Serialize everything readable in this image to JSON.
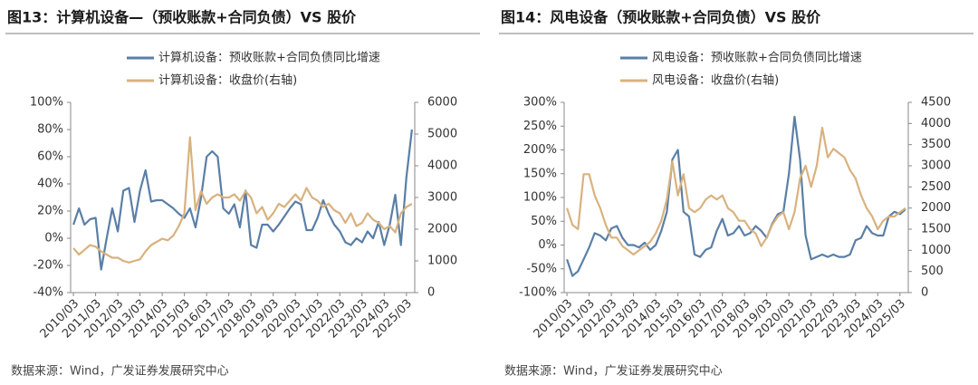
{
  "chart_data": [
    {
      "type": "line",
      "title": "图13：计算机设备—（预收账款+合同负债）VS 股价",
      "source": "数据来源：Wind，广发证券发展研究中心",
      "categories": [
        "2010/03",
        null,
        null,
        null,
        "2011/03",
        null,
        null,
        null,
        "2012/03",
        null,
        null,
        null,
        "2013/03",
        null,
        null,
        null,
        "2014/03",
        null,
        null,
        null,
        "2015/03",
        null,
        null,
        null,
        "2016/03",
        null,
        null,
        null,
        "2017/03",
        null,
        null,
        null,
        "2018/03",
        null,
        null,
        null,
        "2019/03",
        null,
        null,
        null,
        "2020/03",
        null,
        null,
        null,
        "2021/03",
        null,
        null,
        null,
        "2022/03",
        null,
        null,
        null,
        "2023/03",
        null,
        null,
        null,
        "2024/03",
        null,
        null,
        null,
        "2025/03",
        null
      ],
      "series": [
        {
          "name": "计算机设备：预收账款+合同负债同比增速",
          "color": "#5a7fa6",
          "values": [
            10,
            22,
            10,
            14,
            15,
            -23,
            0,
            22,
            5,
            35,
            37,
            12,
            35,
            50,
            27,
            28,
            28,
            25,
            22,
            18,
            15,
            22,
            8,
            30,
            60,
            64,
            60,
            22,
            18,
            25,
            8,
            35,
            -5,
            -7,
            10,
            10,
            5,
            10,
            16,
            22,
            27,
            25,
            6,
            6,
            15,
            28,
            18,
            10,
            5,
            -3,
            -5,
            0,
            -3,
            5,
            0,
            12,
            -5,
            10,
            32,
            -5,
            45,
            80
          ]
        },
        {
          "name": "计算机设备：收盘价(右轴)",
          "color": "#d8b27f",
          "axis": "y2",
          "values": [
            1400,
            1200,
            1350,
            1500,
            1450,
            1300,
            1200,
            1100,
            1100,
            1000,
            950,
            1000,
            1050,
            1300,
            1500,
            1600,
            1700,
            1650,
            1800,
            2100,
            2500,
            4900,
            2600,
            3200,
            2800,
            3000,
            3100,
            3000,
            3000,
            3100,
            2900,
            3200,
            3000,
            2500,
            2700,
            2300,
            2500,
            2800,
            2700,
            2900,
            3100,
            2900,
            3300,
            3000,
            2900,
            2700,
            2800,
            2600,
            2500,
            2200,
            2500,
            2100,
            2200,
            2500,
            2300,
            2200,
            2000,
            2100,
            1900,
            2500,
            2700,
            2800
          ]
        }
      ],
      "ylim": [
        -40,
        100
      ],
      "yticks": [
        {
          "value": -40,
          "label": "-40%"
        },
        {
          "value": -20,
          "label": "-20%"
        },
        {
          "value": 0,
          "label": "0%"
        },
        {
          "value": 20,
          "label": "20%"
        },
        {
          "value": 40,
          "label": "40%"
        },
        {
          "value": 60,
          "label": "60%"
        },
        {
          "value": 80,
          "label": "80%"
        },
        {
          "value": 100,
          "label": "100%"
        }
      ],
      "y2lim": [
        0,
        6000
      ],
      "y2ticks": [
        0,
        1000,
        2000,
        3000,
        4000,
        5000,
        6000
      ],
      "grid": false
    },
    {
      "type": "line",
      "title": "图14：风电设备（预收账款+合同负债）VS 股价",
      "source": "数据来源：Wind，广发证券发展研究中心",
      "categories": [
        "2010/03",
        null,
        null,
        null,
        "2011/03",
        null,
        null,
        null,
        "2012/03",
        null,
        null,
        null,
        "2013/03",
        null,
        null,
        null,
        "2014/03",
        null,
        null,
        null,
        "2015/03",
        null,
        null,
        null,
        "2016/03",
        null,
        null,
        null,
        "2017/03",
        null,
        null,
        null,
        "2018/03",
        null,
        null,
        null,
        "2019/03",
        null,
        null,
        null,
        "2020/03",
        null,
        null,
        null,
        "2021/03",
        null,
        null,
        null,
        "2022/03",
        null,
        null,
        null,
        "2023/03",
        null,
        null,
        null,
        "2024/03",
        null,
        null,
        null,
        "2025/03",
        null
      ],
      "series": [
        {
          "name": "风电设备：预收账款+合同负债同比增速",
          "color": "#5a7fa6",
          "values": [
            -30,
            -65,
            -55,
            -30,
            -5,
            25,
            20,
            10,
            35,
            40,
            15,
            0,
            0,
            -5,
            5,
            -10,
            0,
            30,
            70,
            180,
            200,
            70,
            60,
            -20,
            -25,
            -10,
            -5,
            30,
            55,
            20,
            25,
            40,
            20,
            25,
            40,
            30,
            15,
            45,
            65,
            70,
            150,
            270,
            180,
            20,
            -30,
            -25,
            -20,
            -25,
            -20,
            -25,
            -25,
            -20,
            10,
            15,
            40,
            25,
            20,
            20,
            60,
            70,
            65,
            75
          ]
        },
        {
          "name": "风电设备：收盘价(右轴)",
          "color": "#d8b27f",
          "axis": "y2",
          "values": [
            2000,
            1600,
            1500,
            2800,
            2800,
            2300,
            2000,
            1600,
            1300,
            1300,
            1100,
            1000,
            900,
            1000,
            1100,
            1200,
            1400,
            1700,
            2200,
            3100,
            2300,
            2800,
            2000,
            1900,
            2000,
            2200,
            2300,
            2200,
            2300,
            2000,
            1900,
            1700,
            1700,
            1500,
            1400,
            1100,
            1300,
            1600,
            1800,
            1900,
            1500,
            1900,
            2700,
            3000,
            2500,
            3000,
            3900,
            3200,
            3400,
            3300,
            3200,
            2900,
            2700,
            2300,
            2000,
            1800,
            1500,
            1700,
            1800,
            1800,
            1900,
            2000
          ]
        }
      ],
      "ylim": [
        -100,
        300
      ],
      "yticks": [
        {
          "value": -100,
          "label": "-100%"
        },
        {
          "value": -50,
          "label": "-50%"
        },
        {
          "value": 0,
          "label": "0%"
        },
        {
          "value": 50,
          "label": "50%"
        },
        {
          "value": 100,
          "label": "100%"
        },
        {
          "value": 150,
          "label": "150%"
        },
        {
          "value": 200,
          "label": "200%"
        },
        {
          "value": 250,
          "label": "250%"
        },
        {
          "value": 300,
          "label": "300%"
        }
      ],
      "y2lim": [
        0,
        4500
      ],
      "y2ticks": [
        0,
        500,
        1000,
        1500,
        2000,
        2500,
        3000,
        3500,
        4000,
        4500
      ],
      "grid": false
    }
  ]
}
